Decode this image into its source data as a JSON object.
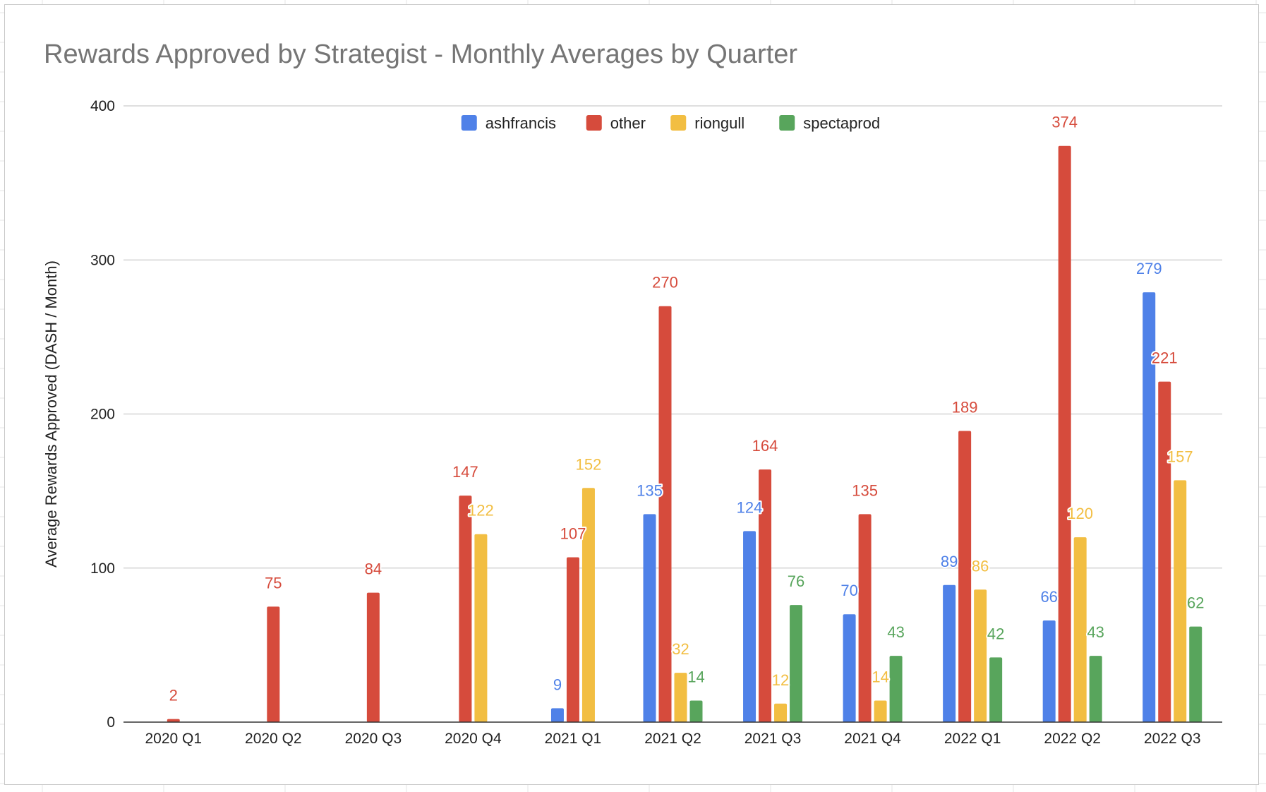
{
  "chart_data": {
    "type": "bar",
    "title": "Rewards Approved by Strategist - Monthly Averages by Quarter",
    "xlabel": "",
    "ylabel": "Average Rewards Approved (DASH / Month)",
    "ylim": [
      0,
      400
    ],
    "yticks": [
      "0",
      "100",
      "200",
      "300",
      "400"
    ],
    "grid": true,
    "legend_position": "top",
    "categories": [
      "2020 Q1",
      "2020 Q2",
      "2020 Q3",
      "2020 Q4",
      "2021 Q1",
      "2021 Q2",
      "2021 Q3",
      "2021 Q4",
      "2022 Q1",
      "2022 Q2",
      "2022 Q3"
    ],
    "series": [
      {
        "name": "ashfrancis",
        "color": "#4f81e8",
        "values": [
          null,
          null,
          null,
          null,
          9,
          135,
          124,
          70,
          89,
          66,
          279
        ]
      },
      {
        "name": "other",
        "color": "#d64b3c",
        "values": [
          2,
          75,
          84,
          147,
          107,
          270,
          164,
          135,
          189,
          374,
          221
        ]
      },
      {
        "name": "riongull",
        "color": "#f2be42",
        "values": [
          null,
          null,
          null,
          122,
          152,
          32,
          12,
          14,
          86,
          120,
          157
        ]
      },
      {
        "name": "spectaprod",
        "color": "#58a55c",
        "values": [
          null,
          null,
          null,
          null,
          null,
          14,
          76,
          43,
          42,
          43,
          62
        ]
      }
    ]
  }
}
